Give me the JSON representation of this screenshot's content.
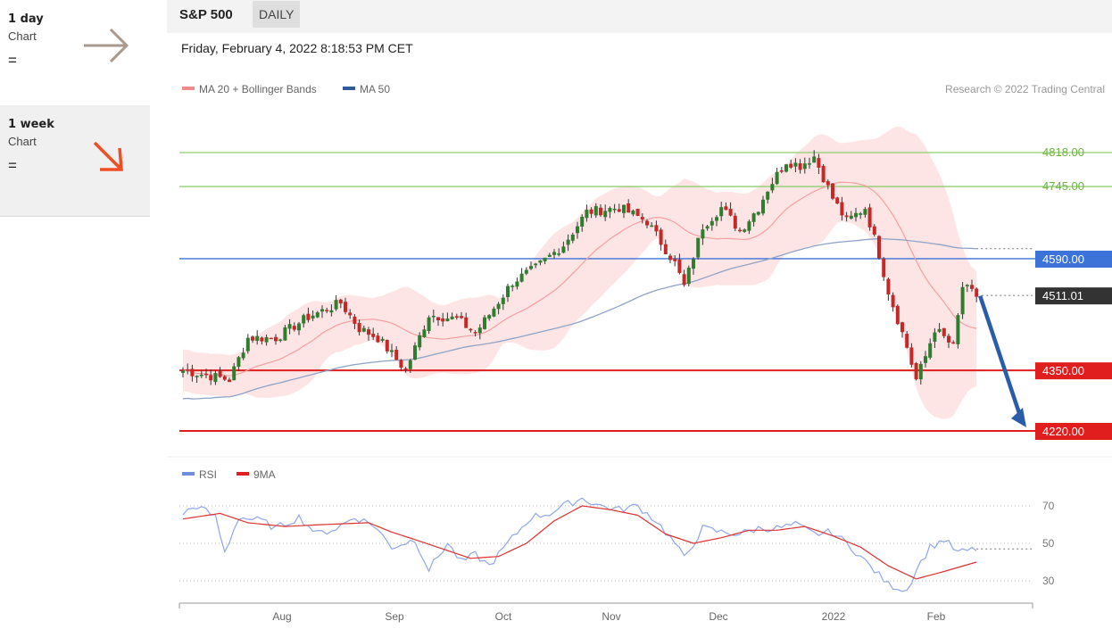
{
  "sidebar": {
    "timeframes": [
      {
        "label": "1 day",
        "sub": "Chart",
        "symbol": "=",
        "arrow": "right",
        "arrow_color": "#a89a8c"
      },
      {
        "label": "1 week",
        "sub": "Chart",
        "symbol": "=",
        "arrow": "down-right",
        "arrow_color": "#f04e23"
      }
    ]
  },
  "header": {
    "title": "S&P 500",
    "period": "DAILY"
  },
  "datetime": "Friday, February 4, 2022 8:18:53 PM CET",
  "legend": {
    "price": [
      {
        "label": "MA 20 + Bollinger Bands",
        "color": "#f28c8c"
      },
      {
        "label": "MA 50",
        "color": "#2e5c9a"
      }
    ],
    "rsi": [
      {
        "label": "RSI",
        "color": "#6f8ee0"
      },
      {
        "label": "9MA",
        "color": "#e02020"
      }
    ]
  },
  "copyright": "Research © 2022 Trading Central",
  "colors": {
    "up": "#2f7d2f",
    "down": "#c62828",
    "resistance": "#8fcf6f",
    "support": "#e01e1e",
    "pivot": "#3b73d9",
    "last": "#333333",
    "band": "#fde0e0",
    "forecast": "#2a5da8"
  },
  "chart_data": [
    {
      "type": "line",
      "title": "S&P 500",
      "ylim": [
        4180,
        4880
      ],
      "x_ticks": [
        "Aug",
        "Sep",
        "Oct",
        "Nov",
        "Dec",
        "2022",
        "Feb"
      ],
      "levels": [
        {
          "label": "4818.00",
          "value": 4818,
          "kind": "resistance"
        },
        {
          "label": "4745.00",
          "value": 4745,
          "kind": "resistance"
        },
        {
          "label": "4590.00",
          "value": 4590,
          "kind": "pivot"
        },
        {
          "label": "4511.01",
          "value": 4511.01,
          "kind": "last"
        },
        {
          "label": "4350.00",
          "value": 4350,
          "kind": "support"
        },
        {
          "label": "4220.00",
          "value": 4220,
          "kind": "support"
        }
      ],
      "forecast": {
        "from": 4510,
        "to": 4220
      },
      "ma50_endpoints": {
        "start": 4215,
        "end": 4615
      },
      "anchors": [
        [
          0,
          4350
        ],
        [
          10,
          4330
        ],
        [
          14,
          4420
        ],
        [
          20,
          4420
        ],
        [
          27,
          4465
        ],
        [
          34,
          4495
        ],
        [
          38,
          4440
        ],
        [
          42,
          4420
        ],
        [
          48,
          4350
        ],
        [
          53,
          4470
        ],
        [
          59,
          4460
        ],
        [
          63,
          4430
        ],
        [
          66,
          4470
        ],
        [
          71,
          4540
        ],
        [
          76,
          4570
        ],
        [
          82,
          4620
        ],
        [
          87,
          4690
        ],
        [
          94,
          4700
        ],
        [
          100,
          4670
        ],
        [
          106,
          4580
        ],
        [
          108,
          4530
        ],
        [
          112,
          4660
        ],
        [
          116,
          4700
        ],
        [
          120,
          4650
        ],
        [
          124,
          4700
        ],
        [
          126,
          4740
        ],
        [
          130,
          4800
        ],
        [
          133,
          4790
        ],
        [
          136,
          4810
        ],
        [
          140,
          4720
        ],
        [
          143,
          4670
        ],
        [
          147,
          4700
        ],
        [
          150,
          4600
        ],
        [
          152,
          4520
        ],
        [
          156,
          4400
        ],
        [
          158,
          4330
        ],
        [
          160,
          4380
        ],
        [
          162,
          4440
        ],
        [
          166,
          4400
        ],
        [
          168,
          4530
        ],
        [
          171,
          4510
        ]
      ]
    },
    {
      "type": "line",
      "title": "RSI",
      "ylim": [
        20,
        80
      ],
      "y_ticks": [
        70,
        50,
        30
      ],
      "rsi_anchors": [
        [
          0,
          66
        ],
        [
          3,
          70
        ],
        [
          7,
          64
        ],
        [
          9,
          45
        ],
        [
          12,
          64
        ],
        [
          17,
          62
        ],
        [
          20,
          58
        ],
        [
          25,
          64
        ],
        [
          29,
          55
        ],
        [
          33,
          58
        ],
        [
          37,
          64
        ],
        [
          41,
          60
        ],
        [
          45,
          48
        ],
        [
          50,
          52
        ],
        [
          53,
          36
        ],
        [
          57,
          50
        ],
        [
          60,
          40
        ],
        [
          63,
          44
        ],
        [
          66,
          38
        ],
        [
          70,
          50
        ],
        [
          75,
          64
        ],
        [
          79,
          66
        ],
        [
          82,
          70
        ],
        [
          86,
          74
        ],
        [
          90,
          70
        ],
        [
          94,
          68
        ],
        [
          98,
          70
        ],
        [
          102,
          62
        ],
        [
          106,
          50
        ],
        [
          108,
          42
        ],
        [
          112,
          58
        ],
        [
          116,
          56
        ],
        [
          120,
          55
        ],
        [
          124,
          58
        ],
        [
          128,
          58
        ],
        [
          132,
          60
        ],
        [
          136,
          55
        ],
        [
          140,
          56
        ],
        [
          144,
          48
        ],
        [
          148,
          38
        ],
        [
          152,
          28
        ],
        [
          156,
          25
        ],
        [
          158,
          36
        ],
        [
          161,
          48
        ],
        [
          164,
          52
        ],
        [
          167,
          45
        ],
        [
          171,
          47
        ]
      ],
      "ma_anchors": [
        [
          0,
          63
        ],
        [
          8,
          66
        ],
        [
          14,
          61
        ],
        [
          22,
          59
        ],
        [
          30,
          60
        ],
        [
          40,
          61
        ],
        [
          45,
          56
        ],
        [
          50,
          52
        ],
        [
          56,
          47
        ],
        [
          62,
          42
        ],
        [
          68,
          43
        ],
        [
          74,
          50
        ],
        [
          80,
          62
        ],
        [
          86,
          70
        ],
        [
          92,
          68
        ],
        [
          98,
          65
        ],
        [
          104,
          55
        ],
        [
          110,
          50
        ],
        [
          116,
          53
        ],
        [
          122,
          57
        ],
        [
          128,
          57
        ],
        [
          134,
          59
        ],
        [
          140,
          54
        ],
        [
          146,
          48
        ],
        [
          152,
          38
        ],
        [
          158,
          31
        ],
        [
          164,
          35
        ],
        [
          171,
          40
        ]
      ]
    }
  ]
}
